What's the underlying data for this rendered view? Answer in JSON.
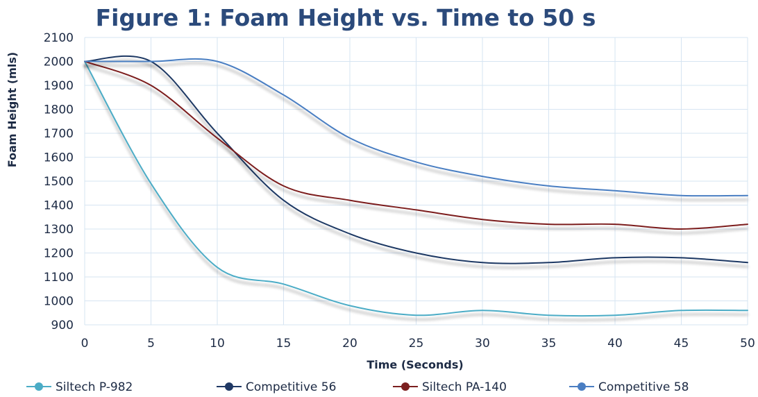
{
  "chart_data": {
    "type": "line",
    "title": "Figure 1: Foam Height vs. Time to 50 s",
    "xlabel": "Time (Seconds)",
    "ylabel": "Foam Height (mls)",
    "xlim": [
      0,
      50
    ],
    "ylim": [
      900,
      2100
    ],
    "xticks": [
      0,
      5,
      10,
      15,
      20,
      25,
      30,
      35,
      40,
      45,
      50
    ],
    "yticks": [
      900,
      1000,
      1100,
      1200,
      1300,
      1400,
      1500,
      1600,
      1700,
      1800,
      1900,
      2000,
      2100
    ],
    "grid": true,
    "legend_position": "bottom",
    "smoothed": true,
    "x": [
      0,
      5,
      10,
      15,
      20,
      25,
      30,
      35,
      40,
      45,
      50
    ],
    "series": [
      {
        "name": "Siltech P-982",
        "color": "#4bacc6",
        "values": [
          2000,
          1490,
          1140,
          1070,
          980,
          940,
          960,
          940,
          940,
          960,
          960
        ]
      },
      {
        "name": "Competitive 56",
        "color": "#1f3864",
        "values": [
          2000,
          2000,
          1700,
          1420,
          1280,
          1200,
          1160,
          1160,
          1180,
          1180,
          1160
        ]
      },
      {
        "name": "Siltech PA-140",
        "color": "#7b1f1f",
        "values": [
          2000,
          1900,
          1680,
          1480,
          1420,
          1380,
          1340,
          1320,
          1320,
          1300,
          1320
        ]
      },
      {
        "name": "Competitive 58",
        "color": "#4a7ec2",
        "values": [
          2000,
          2000,
          2000,
          1860,
          1680,
          1580,
          1520,
          1480,
          1460,
          1440,
          1440
        ]
      }
    ]
  }
}
